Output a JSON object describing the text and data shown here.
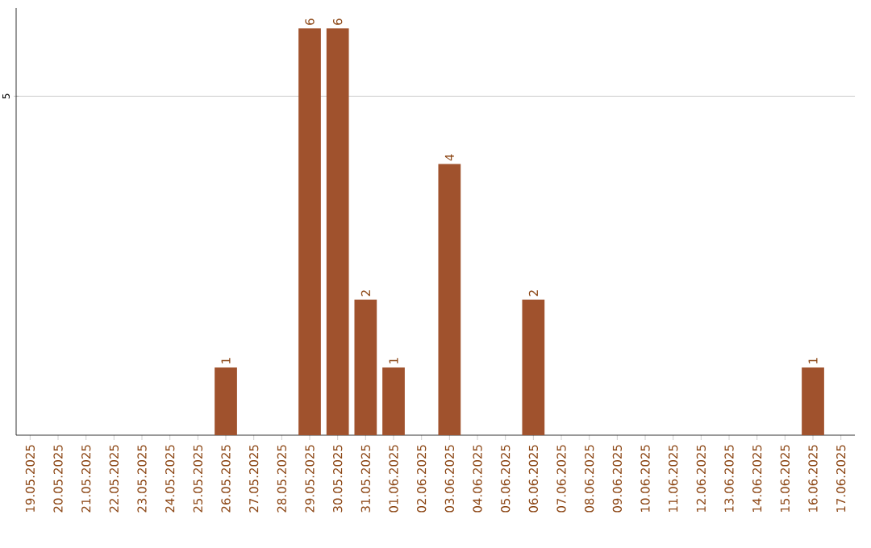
{
  "chart_data": {
    "type": "bar",
    "categories": [
      "19.05.2025",
      "20.05.2025",
      "21.05.2025",
      "22.05.2025",
      "23.05.2025",
      "24.05.2025",
      "25.05.2025",
      "26.05.2025",
      "27.05.2025",
      "28.05.2025",
      "29.05.2025",
      "30.05.2025",
      "31.05.2025",
      "01.06.2025",
      "02.06.2025",
      "03.06.2025",
      "04.06.2025",
      "05.06.2025",
      "06.06.2025",
      "07.06.2025",
      "08.06.2025",
      "09.06.2025",
      "10.06.2025",
      "11.06.2025",
      "12.06.2025",
      "13.06.2025",
      "14.06.2025",
      "15.06.2025",
      "16.06.2025",
      "17.06.2025"
    ],
    "values": [
      0,
      0,
      0,
      0,
      0,
      0,
      0,
      1,
      0,
      0,
      6,
      6,
      2,
      1,
      0,
      4,
      0,
      0,
      2,
      0,
      0,
      0,
      0,
      0,
      0,
      0,
      0,
      0,
      1,
      0
    ],
    "value_labels": [
      null,
      null,
      null,
      null,
      null,
      null,
      null,
      "1",
      null,
      null,
      "6",
      "6",
      "2",
      "1",
      null,
      "4",
      null,
      null,
      "2",
      null,
      null,
      null,
      null,
      null,
      null,
      null,
      null,
      null,
      "1",
      null
    ],
    "color": "#a0522d",
    "ylim": [
      0,
      6.3
    ],
    "yticks": [
      5
    ],
    "grid": "y"
  }
}
